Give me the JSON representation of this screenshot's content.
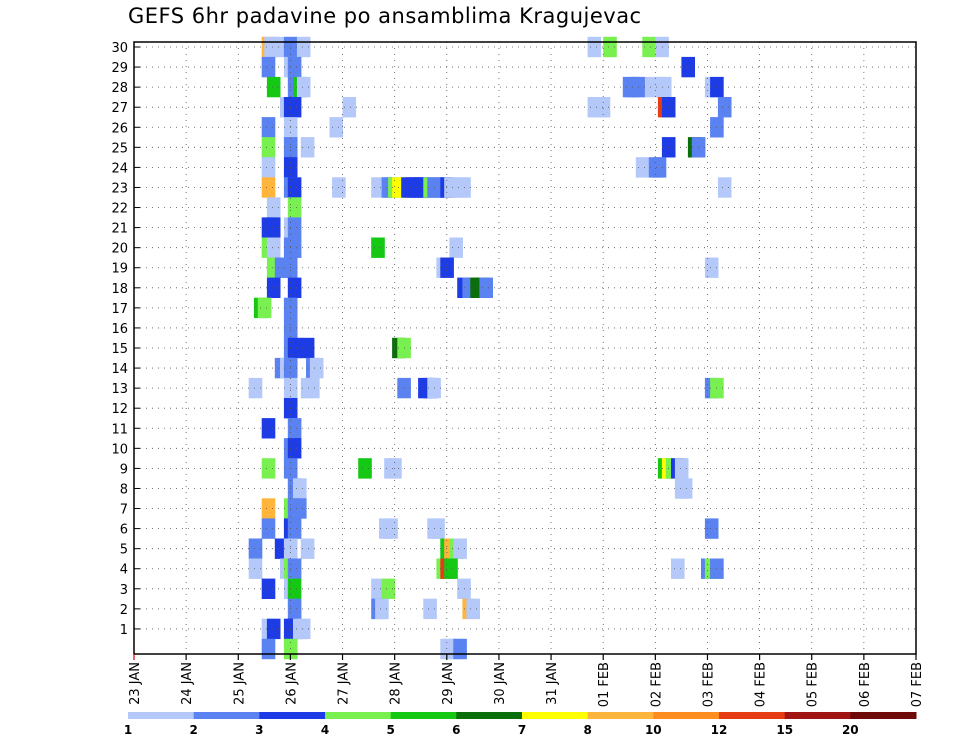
{
  "chart_data": {
    "type": "heatmap",
    "title": "GEFS 6hr padavine po ansamblima Kragujevac",
    "x_tick_labels": [
      "23 JAN",
      "24 JAN",
      "25 JAN",
      "26 JAN",
      "27 JAN",
      "28 JAN",
      "29 JAN",
      "30 JAN",
      "31 JAN",
      "01 FEB",
      "02 FEB",
      "03 FEB",
      "04 FEB",
      "05 FEB",
      "06 FEB",
      "07 FEB"
    ],
    "y_tick_labels": [
      "1",
      "2",
      "3",
      "4",
      "5",
      "6",
      "7",
      "8",
      "9",
      "10",
      "11",
      "12",
      "13",
      "14",
      "15",
      "16",
      "17",
      "18",
      "19",
      "20",
      "21",
      "22",
      "23",
      "24",
      "25",
      "26",
      "27",
      "28",
      "29",
      "30"
    ],
    "ylim": [
      0,
      30
    ],
    "x_days_range": [
      0,
      15
    ],
    "steps_per_day": 4,
    "grid": true,
    "legend_position": "bottom",
    "legend_labels": [
      "1",
      "2",
      "3",
      "4",
      "5",
      "6",
      "7",
      "8",
      "10",
      "12",
      "15",
      "20"
    ],
    "legend_colors": [
      "#b4c8fa",
      "#5a82f0",
      "#1e3ce6",
      "#78f050",
      "#14c814",
      "#0a6e0a",
      "#ffff00",
      "#ffb43c",
      "#ff8c1e",
      "#e63c14",
      "#a01414",
      "#6e0a0a"
    ],
    "cells": [
      {
        "m": 30,
        "x": [
          [
            9.8,
            "#ffb43c"
          ],
          [
            10,
            "#b4c8fa"
          ],
          [
            10.5,
            "#b4c8fa"
          ],
          [
            11.5,
            "#5a82f0"
          ],
          [
            12.5,
            "#b4c8fa"
          ],
          [
            34.8,
            "#b4c8fa"
          ],
          [
            36,
            "#78f050"
          ],
          [
            39,
            "#78f050"
          ],
          [
            40,
            "#b4c8fa"
          ]
        ]
      },
      {
        "m": 29,
        "x": [
          [
            9.8,
            "#5a82f0"
          ],
          [
            11.5,
            "#b4c8fa"
          ],
          [
            11.8,
            "#5a82f0"
          ],
          [
            42,
            "#1e3ce6"
          ]
        ]
      },
      {
        "m": 28,
        "x": [
          [
            10.2,
            "#14c814"
          ],
          [
            11.8,
            "#5a82f0"
          ],
          [
            12.2,
            "#14c814"
          ],
          [
            12.5,
            "#b4c8fa"
          ],
          [
            37.5,
            "#5a82f0"
          ],
          [
            37.8,
            "#5a82f0"
          ],
          [
            38.2,
            "#5a82f0"
          ],
          [
            39.2,
            "#b4c8fa"
          ],
          [
            40,
            "#b4c8fa"
          ],
          [
            40.2,
            "#b4c8fa"
          ],
          [
            43.8,
            "#b4c8fa"
          ],
          [
            44.2,
            "#1e3ce6"
          ]
        ]
      },
      {
        "m": 27,
        "x": [
          [
            11.2,
            "#b4c8fa"
          ],
          [
            11.5,
            "#1e3ce6"
          ],
          [
            11.8,
            "#1e3ce6"
          ],
          [
            16,
            "#b4c8fa"
          ],
          [
            34.8,
            "#b4c8fa"
          ],
          [
            35.2,
            "#b4c8fa"
          ],
          [
            35.5,
            "#b4c8fa"
          ],
          [
            40.2,
            "#e63c14"
          ],
          [
            40.5,
            "#1e3ce6"
          ],
          [
            44.8,
            "#5a82f0"
          ]
        ]
      },
      {
        "m": 26,
        "x": [
          [
            9.8,
            "#5a82f0"
          ],
          [
            11.5,
            "#b4c8fa"
          ],
          [
            15,
            "#b4c8fa"
          ],
          [
            44.2,
            "#5a82f0"
          ]
        ]
      },
      {
        "m": 25,
        "x": [
          [
            9.8,
            "#78f050"
          ],
          [
            11.5,
            "#5a82f0"
          ],
          [
            12.8,
            "#b4c8fa"
          ],
          [
            40.5,
            "#1e3ce6"
          ],
          [
            42.5,
            "#0a6e0a"
          ],
          [
            42.8,
            "#5a82f0"
          ]
        ]
      },
      {
        "m": 24,
        "x": [
          [
            9.8,
            "#b4c8fa"
          ],
          [
            11.5,
            "#1e3ce6"
          ],
          [
            38.5,
            "#b4c8fa"
          ],
          [
            39.5,
            "#5a82f0"
          ],
          [
            39.8,
            "#5a82f0"
          ]
        ]
      },
      {
        "m": 23,
        "x": [
          [
            9.8,
            "#ffb43c"
          ],
          [
            11.5,
            "#5a82f0"
          ],
          [
            11.8,
            "#1e3ce6"
          ],
          [
            15.2,
            "#b4c8fa"
          ],
          [
            18.2,
            "#b4c8fa"
          ],
          [
            19,
            "#5a82f0"
          ],
          [
            19.2,
            "#5a82f0"
          ],
          [
            19.5,
            "#78f050"
          ],
          [
            19.8,
            "#ffff00"
          ],
          [
            20.2,
            "#ffff00"
          ],
          [
            20.5,
            "#1e3ce6"
          ],
          [
            20.8,
            "#1e3ce6"
          ],
          [
            21.2,
            "#1e3ce6"
          ],
          [
            21.5,
            "#1e3ce6"
          ],
          [
            21.8,
            "#1e3ce6"
          ],
          [
            22.2,
            "#78f050"
          ],
          [
            22.5,
            "#5a82f0"
          ],
          [
            22.8,
            "#5a82f0"
          ],
          [
            23.2,
            "#5a82f0"
          ],
          [
            23.5,
            "#1e3ce6"
          ],
          [
            23.8,
            "#b4c8fa"
          ],
          [
            24.5,
            "#b4c8fa"
          ],
          [
            24.8,
            "#b4c8fa"
          ],
          [
            44.8,
            "#b4c8fa"
          ]
        ]
      },
      {
        "m": 22,
        "x": [
          [
            10.2,
            "#b4c8fa"
          ],
          [
            11.8,
            "#78f050"
          ]
        ]
      },
      {
        "m": 21,
        "x": [
          [
            9.8,
            "#1e3ce6"
          ],
          [
            10.2,
            "#1e3ce6"
          ],
          [
            11.5,
            "#b4c8fa"
          ],
          [
            11.8,
            "#5a82f0"
          ]
        ]
      },
      {
        "m": 20,
        "x": [
          [
            9.8,
            "#78f050"
          ],
          [
            10.2,
            "#b4c8fa"
          ],
          [
            11.5,
            "#5a82f0"
          ],
          [
            11.8,
            "#5a82f0"
          ],
          [
            18.2,
            "#14c814"
          ],
          [
            24.2,
            "#b4c8fa"
          ]
        ]
      },
      {
        "m": 19,
        "x": [
          [
            10.2,
            "#78f050"
          ],
          [
            10.5,
            "#78f050"
          ],
          [
            10.8,
            "#5a82f0"
          ],
          [
            11.5,
            "#5a82f0"
          ],
          [
            23.2,
            "#b4c8fa"
          ],
          [
            23.5,
            "#1e3ce6"
          ],
          [
            43.8,
            "#b4c8fa"
          ]
        ]
      },
      {
        "m": 18,
        "x": [
          [
            10.2,
            "#1e3ce6"
          ],
          [
            11.8,
            "#1e3ce6"
          ],
          [
            24.8,
            "#1e3ce6"
          ],
          [
            25.2,
            "#5a82f0"
          ],
          [
            25.8,
            "#0a6e0a"
          ],
          [
            26.2,
            "#0a6e0a"
          ],
          [
            26.5,
            "#5a82f0"
          ]
        ]
      },
      {
        "m": 17,
        "x": [
          [
            9.2,
            "#14c814"
          ],
          [
            9.5,
            "#78f050"
          ],
          [
            11.5,
            "#5a82f0"
          ]
        ]
      },
      {
        "m": 16,
        "x": [
          [
            11.5,
            "#5a82f0"
          ]
        ]
      },
      {
        "m": 15,
        "x": [
          [
            11.5,
            "#5a82f0"
          ],
          [
            11.8,
            "#1e3ce6"
          ],
          [
            12.8,
            "#1e3ce6"
          ],
          [
            19.8,
            "#0a6e0a"
          ],
          [
            20.2,
            "#78f050"
          ]
        ]
      },
      {
        "m": 14,
        "x": [
          [
            10.8,
            "#5a82f0"
          ],
          [
            11.2,
            "#b4c8fa"
          ],
          [
            11.5,
            "#5a82f0"
          ],
          [
            13.2,
            "#5a82f0"
          ],
          [
            13.5,
            "#b4c8fa"
          ]
        ]
      },
      {
        "m": 13,
        "x": [
          [
            8.8,
            "#b4c8fa"
          ],
          [
            11.5,
            "#b4c8fa"
          ],
          [
            12.8,
            "#b4c8fa"
          ],
          [
            13.2,
            "#b4c8fa"
          ],
          [
            20.2,
            "#5a82f0"
          ],
          [
            21.8,
            "#1e3ce6"
          ],
          [
            22.2,
            "#1e3ce6"
          ],
          [
            22.5,
            "#b4c8fa"
          ],
          [
            43.8,
            "#5a82f0"
          ],
          [
            44.2,
            "#78f050"
          ]
        ]
      },
      {
        "m": 12,
        "x": [
          [
            11.5,
            "#1e3ce6"
          ]
        ]
      },
      {
        "m": 11,
        "x": [
          [
            9.8,
            "#1e3ce6"
          ],
          [
            11.8,
            "#5a82f0"
          ]
        ]
      },
      {
        "m": 10,
        "x": [
          [
            11.5,
            "#5a82f0"
          ],
          [
            11.8,
            "#1e3ce6"
          ]
        ]
      },
      {
        "m": 9,
        "x": [
          [
            9.8,
            "#78f050"
          ],
          [
            11.5,
            "#5a82f0"
          ],
          [
            17.2,
            "#14c814"
          ],
          [
            19.2,
            "#b4c8fa"
          ],
          [
            19.5,
            "#b4c8fa"
          ],
          [
            40.2,
            "#14c814"
          ],
          [
            40.5,
            "#ffff00"
          ],
          [
            40.8,
            "#78f050"
          ],
          [
            41.2,
            "#1e3ce6"
          ],
          [
            41.5,
            "#b4c8fa"
          ]
        ]
      },
      {
        "m": 8,
        "x": [
          [
            11.8,
            "#5a82f0"
          ],
          [
            12.2,
            "#b4c8fa"
          ],
          [
            41.5,
            "#b4c8fa"
          ],
          [
            41.8,
            "#b4c8fa"
          ]
        ]
      },
      {
        "m": 7,
        "x": [
          [
            9.8,
            "#ffb43c"
          ],
          [
            11.5,
            "#78f050"
          ],
          [
            11.8,
            "#5a82f0"
          ],
          [
            12.2,
            "#5a82f0"
          ]
        ]
      },
      {
        "m": 6,
        "x": [
          [
            9.8,
            "#5a82f0"
          ],
          [
            11.5,
            "#1e3ce6"
          ],
          [
            11.8,
            "#5a82f0"
          ],
          [
            18.8,
            "#b4c8fa"
          ],
          [
            19.2,
            "#b4c8fa"
          ],
          [
            22.5,
            "#b4c8fa"
          ],
          [
            22.8,
            "#b4c8fa"
          ],
          [
            43.8,
            "#5a82f0"
          ]
        ]
      },
      {
        "m": 5,
        "x": [
          [
            8.8,
            "#5a82f0"
          ],
          [
            10.8,
            "#1e3ce6"
          ],
          [
            11.5,
            "#b4c8fa"
          ],
          [
            12.8,
            "#b4c8fa"
          ],
          [
            23.5,
            "#14c814"
          ],
          [
            23.8,
            "#ffb43c"
          ],
          [
            24.2,
            "#78f050"
          ],
          [
            24.5,
            "#b4c8fa"
          ]
        ]
      },
      {
        "m": 4,
        "x": [
          [
            8.8,
            "#b4c8fa"
          ],
          [
            11.2,
            "#b4c8fa"
          ],
          [
            11.5,
            "#78f050"
          ],
          [
            11.8,
            "#5a82f0"
          ],
          [
            23.2,
            "#78f050"
          ],
          [
            23.5,
            "#e63c14"
          ],
          [
            23.8,
            "#14c814"
          ],
          [
            41.2,
            "#b4c8fa"
          ],
          [
            43.5,
            "#5a82f0"
          ],
          [
            43.8,
            "#78f050"
          ],
          [
            44.2,
            "#5a82f0"
          ]
        ]
      },
      {
        "m": 3,
        "x": [
          [
            9.8,
            "#1e3ce6"
          ],
          [
            11.5,
            "#b4c8fa"
          ],
          [
            11.8,
            "#14c814"
          ],
          [
            18.2,
            "#b4c8fa"
          ],
          [
            19,
            "#78f050"
          ],
          [
            24.8,
            "#b4c8fa"
          ]
        ]
      },
      {
        "m": 2,
        "x": [
          [
            11.8,
            "#5a82f0"
          ],
          [
            18.2,
            "#5a82f0"
          ],
          [
            18.5,
            "#b4c8fa"
          ],
          [
            22.2,
            "#b4c8fa"
          ],
          [
            25.2,
            "#ffb43c"
          ],
          [
            25.5,
            "#b4c8fa"
          ]
        ]
      },
      {
        "m": 1,
        "x": [
          [
            9.8,
            "#b4c8fa"
          ],
          [
            10.2,
            "#1e3ce6"
          ],
          [
            11.5,
            "#1e3ce6"
          ],
          [
            11.8,
            "#1e3ce6"
          ],
          [
            12.2,
            "#b4c8fa"
          ],
          [
            12.5,
            "#b4c8fa"
          ]
        ]
      },
      {
        "m": 0,
        "x": [
          [
            9.8,
            "#5a82f0"
          ],
          [
            11.5,
            "#78f050"
          ],
          [
            23.5,
            "#b4c8fa"
          ],
          [
            23.8,
            "#b4c8fa"
          ],
          [
            24.2,
            "#b4c8fa"
          ],
          [
            24.5,
            "#5a82f0"
          ]
        ]
      }
    ]
  }
}
